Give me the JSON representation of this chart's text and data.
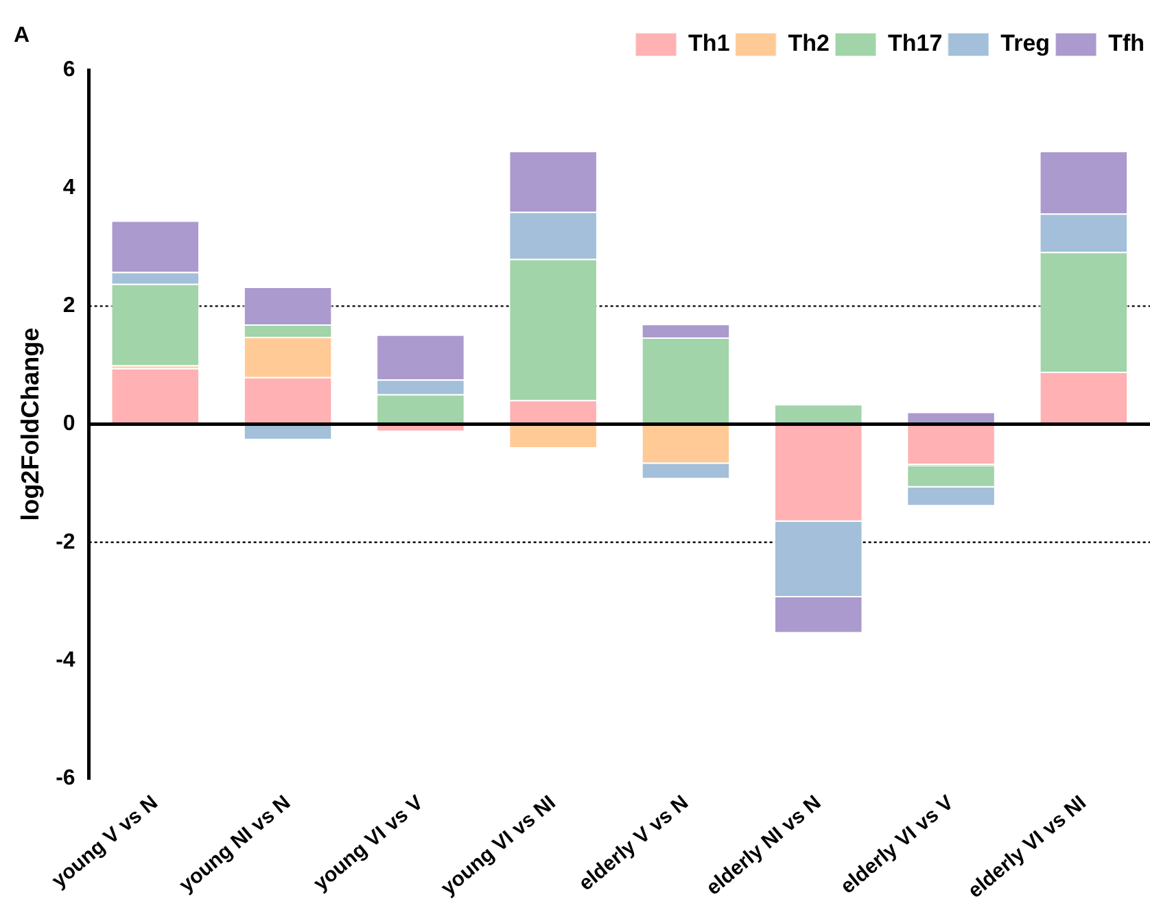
{
  "chart_data": {
    "type": "bar",
    "stacked": true,
    "ylabel": "log2FoldChange",
    "annotations": [
      "A"
    ],
    "categories": [
      "young V vs N",
      "young NI vs N",
      "young VI vs V",
      "young VI vs NI",
      "elderly V vs N",
      "elderly NI vs N",
      "elderly VI vs V",
      "elderly VI vs NI"
    ],
    "series": [
      {
        "name": "Th1",
        "color": "#ffb1b3",
        "values": [
          0.95,
          0.8,
          -0.13,
          0.41,
          0,
          -1.65,
          -0.69,
          0.89
        ]
      },
      {
        "name": "Th2",
        "color": "#ffca96",
        "values": [
          0.05,
          0.68,
          0,
          -0.41,
          -0.67,
          0,
          -0.02,
          0
        ]
      },
      {
        "name": "Th17",
        "color": "#a1d4a9",
        "values": [
          1.38,
          0.21,
          0.51,
          2.39,
          1.47,
          0.34,
          -0.36,
          2.03
        ]
      },
      {
        "name": "Treg",
        "color": "#a3bfd9",
        "values": [
          0.2,
          -0.27,
          0.25,
          0.8,
          -0.26,
          -1.28,
          -0.32,
          0.65
        ]
      },
      {
        "name": "Tfh",
        "color": "#ab9acd",
        "values": [
          0.87,
          0.64,
          0.76,
          1.03,
          0.23,
          -0.61,
          0.21,
          1.06
        ]
      }
    ],
    "ylim": [
      -6,
      6
    ],
    "yticks": [
      -6,
      -4,
      -2,
      0,
      2,
      4,
      6
    ],
    "grid": false,
    "legend": "top right",
    "ref_lines": [
      {
        "axis": "y",
        "value": 2,
        "line_style": "dotted",
        "color": "#000000"
      },
      {
        "axis": "y",
        "value": -2,
        "line_style": "dotted",
        "color": "#000000"
      },
      {
        "axis": "y",
        "value": 0,
        "line_style": "solid",
        "color": "#000000"
      }
    ]
  }
}
